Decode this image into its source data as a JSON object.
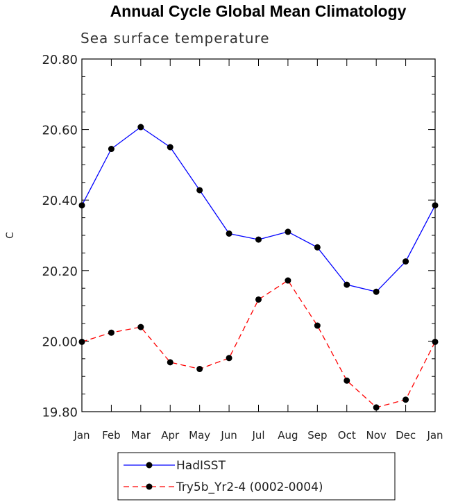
{
  "chart_data": {
    "type": "line",
    "title": "Annual Cycle Global Mean Climatology",
    "subtitle": "Sea surface temperature",
    "ylabel": "C",
    "xlabel": "",
    "categories": [
      "Jan",
      "Feb",
      "Mar",
      "Apr",
      "May",
      "Jun",
      "Jul",
      "Aug",
      "Sep",
      "Oct",
      "Nov",
      "Dec",
      "Jan"
    ],
    "ylim": [
      19.8,
      20.8
    ],
    "yticks": [
      "19.80",
      "20.00",
      "20.20",
      "20.40",
      "20.60",
      "20.80"
    ],
    "grid": false,
    "legend_position": "bottom",
    "series": [
      {
        "name": "HadISST",
        "color": "#0000ff",
        "line_style": "solid",
        "values": [
          20.385,
          20.545,
          20.607,
          20.55,
          20.428,
          20.305,
          20.288,
          20.31,
          20.266,
          20.16,
          20.14,
          20.226,
          20.385
        ]
      },
      {
        "name": "Try5b_Yr2-4 (0002-0004)",
        "color": "#ff0000",
        "line_style": "dashed",
        "values": [
          19.998,
          20.024,
          20.04,
          19.94,
          19.921,
          19.952,
          20.118,
          20.172,
          20.044,
          19.888,
          19.812,
          19.834,
          19.998
        ]
      }
    ]
  }
}
